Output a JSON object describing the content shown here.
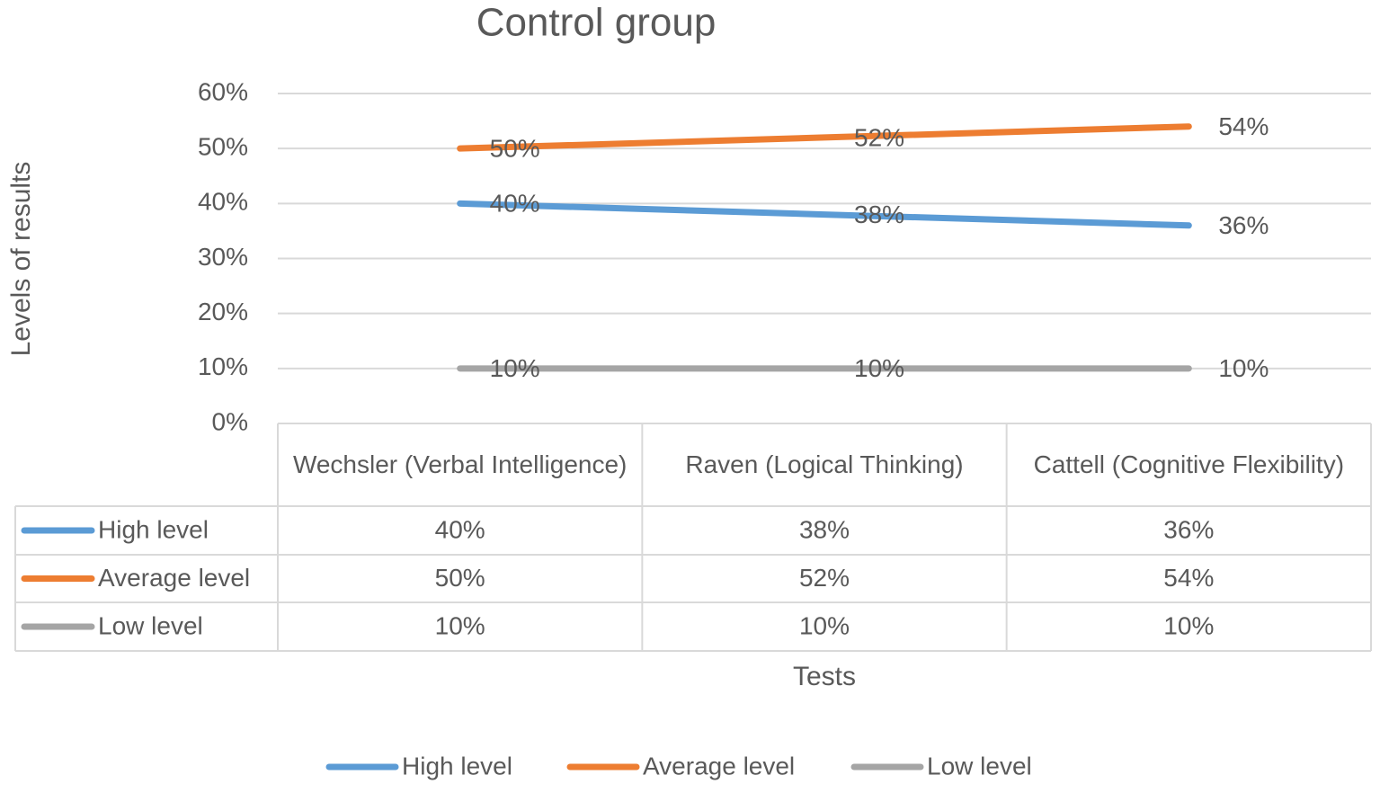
{
  "chart_data": {
    "type": "line",
    "title": "Control group",
    "y_label": "Levels of results",
    "x_label": "Tests",
    "categories": [
      "Wechsler (Verbal Intelligence)",
      "Raven (Logical Thinking)",
      "Cattell (Cognitive Flexibility)"
    ],
    "series": [
      {
        "name": "High level",
        "color": "#5b9bd5",
        "values": [
          40,
          38,
          36
        ],
        "value_labels": [
          "40%",
          "38%",
          "36%"
        ]
      },
      {
        "name": "Average level",
        "color": "#ed7d31",
        "values": [
          50,
          52,
          54
        ],
        "value_labels": [
          "50%",
          "52%",
          "54%"
        ]
      },
      {
        "name": "Low level",
        "color": "#a5a5a5",
        "values": [
          10,
          10,
          10
        ],
        "value_labels": [
          "10%",
          "10%",
          "10%"
        ]
      }
    ],
    "ylim": [
      0,
      60
    ],
    "yticks": [
      {
        "value": 0,
        "label": "0%"
      },
      {
        "value": 10,
        "label": "10%"
      },
      {
        "value": 20,
        "label": "20%"
      },
      {
        "value": 30,
        "label": "30%"
      },
      {
        "value": 40,
        "label": "40%"
      },
      {
        "value": 50,
        "label": "50%"
      },
      {
        "value": 60,
        "label": "60%"
      }
    ],
    "grid": true,
    "legend": "bottom",
    "data_table": true
  }
}
